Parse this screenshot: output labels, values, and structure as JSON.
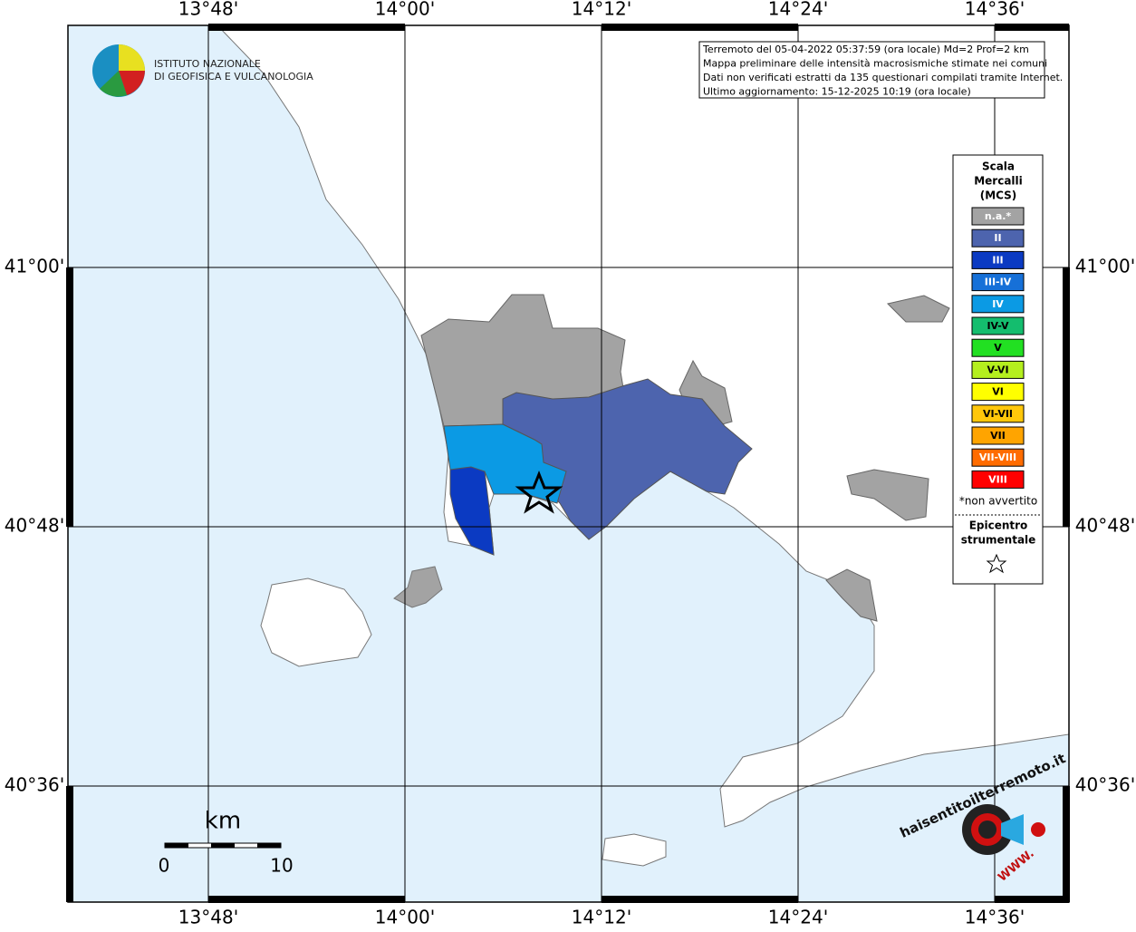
{
  "header": {
    "institute_line1": "ISTITUTO NAZIONALE",
    "institute_line2": "DI GEOFISICA E VULCANOLOGIA"
  },
  "info": {
    "lines": [
      "Terremoto del 05-04-2022 05:37:59 (ora locale) Md=2 Prof=2 km",
      "Mappa preliminare delle intensità macrosismiche stimate nei comuni",
      "Dati non verificati estratti da 135 questionari compilati tramite Internet.",
      "Ultimo aggiornamento: 15-12-2025 10:19 (ora locale)"
    ]
  },
  "grid": {
    "lon_labels": [
      "13°48'",
      "14°00'",
      "14°12'",
      "14°24'",
      "14°36'"
    ],
    "lat_labels": [
      "41°00'",
      "40°48'",
      "40°36'"
    ]
  },
  "legend": {
    "title": [
      "Scala",
      "Mercalli",
      "(MCS)"
    ],
    "items": [
      {
        "label": "n.a.*",
        "color": "#a3a3a3"
      },
      {
        "label": "II",
        "color": "#4d64ae"
      },
      {
        "label": "III",
        "color": "#0b3ac2"
      },
      {
        "label": "III-IV",
        "color": "#1670d8"
      },
      {
        "label": "IV",
        "color": "#0b9ae4"
      },
      {
        "label": "IV-V",
        "color": "#14bd6e"
      },
      {
        "label": "V",
        "color": "#22e022"
      },
      {
        "label": "V-VI",
        "color": "#b4ef1e"
      },
      {
        "label": "VI",
        "color": "#ffff00"
      },
      {
        "label": "VI-VII",
        "color": "#ffc70a"
      },
      {
        "label": "VII",
        "color": "#ffa400"
      },
      {
        "label": "VII-VIII",
        "color": "#ff6c00"
      },
      {
        "label": "VIII",
        "color": "#ff0000"
      }
    ],
    "note": "*non avvertito",
    "epicenter": [
      "Epicentro",
      "strumentale"
    ]
  },
  "scalebar": {
    "unit": "km",
    "start": "0",
    "end": "10"
  },
  "footer_logo": {
    "site": "haisentitoilterremoto.it",
    "www": "WWW."
  }
}
